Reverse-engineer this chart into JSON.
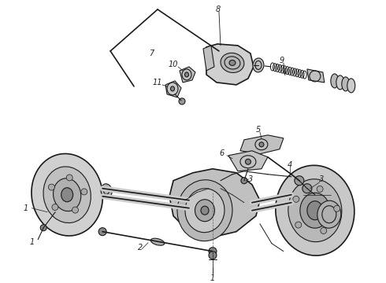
{
  "background_color": "#ffffff",
  "line_color": "#1a1a1a",
  "label_color": "#222222",
  "fig_width": 4.9,
  "fig_height": 3.6,
  "dpi": 100
}
